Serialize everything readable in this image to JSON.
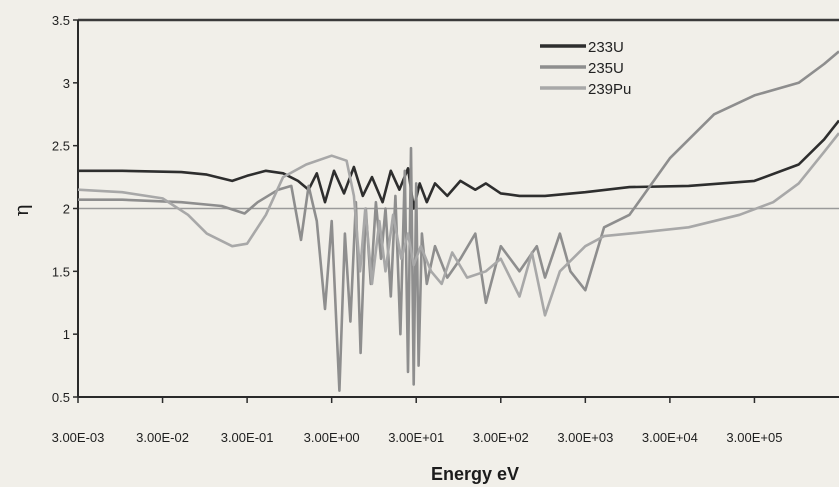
{
  "chart_data": {
    "type": "line",
    "title": "",
    "xlabel": "Energy eV",
    "ylabel": "η",
    "xscale": "log",
    "xlim": [
      0.003,
      3000000
    ],
    "ylim": [
      0.5,
      3.5
    ],
    "xticks": [
      0.003,
      0.03,
      0.3,
      3,
      30,
      300,
      3000,
      30000,
      300000
    ],
    "xtick_labels": [
      "3.00E-03",
      "3.00E-02",
      "3.00E-01",
      "3.00E+00",
      "3.00E+01",
      "3.00E+02",
      "3.00E+03",
      "3.00E+04",
      "3.00E+05"
    ],
    "yticks": [
      0.5,
      1,
      1.5,
      2,
      2.5,
      3,
      3.5
    ],
    "ytick_labels": [
      "0.5",
      "1",
      "1.5",
      "2",
      "2.5",
      "3",
      "3.5"
    ],
    "legend_position": "top-right",
    "reference_line": {
      "y": 2,
      "color": "#9a9a9a"
    },
    "series": [
      {
        "name": "233U",
        "color": "#2e2e2e",
        "points": [
          [
            0.003,
            2.3
          ],
          [
            0.01,
            2.3
          ],
          [
            0.05,
            2.29
          ],
          [
            0.1,
            2.27
          ],
          [
            0.2,
            2.22
          ],
          [
            0.3,
            2.26
          ],
          [
            0.5,
            2.3
          ],
          [
            0.8,
            2.28
          ],
          [
            1.2,
            2.22
          ],
          [
            1.6,
            2.15
          ],
          [
            2.0,
            2.28
          ],
          [
            2.5,
            2.05
          ],
          [
            3.2,
            2.3
          ],
          [
            4.2,
            2.12
          ],
          [
            5.5,
            2.33
          ],
          [
            7.0,
            2.1
          ],
          [
            9.0,
            2.25
          ],
          [
            12,
            2.05
          ],
          [
            15,
            2.3
          ],
          [
            19,
            2.15
          ],
          [
            24,
            2.32
          ],
          [
            28,
            2.0
          ],
          [
            33,
            2.2
          ],
          [
            40,
            2.05
          ],
          [
            50,
            2.2
          ],
          [
            70,
            2.1
          ],
          [
            100,
            2.22
          ],
          [
            150,
            2.15
          ],
          [
            200,
            2.2
          ],
          [
            300,
            2.12
          ],
          [
            500,
            2.1
          ],
          [
            1000,
            2.1
          ],
          [
            3000,
            2.13
          ],
          [
            10000,
            2.17
          ],
          [
            50000,
            2.18
          ],
          [
            300000,
            2.22
          ],
          [
            1000000,
            2.35
          ],
          [
            2000000,
            2.55
          ],
          [
            3000000,
            2.7
          ]
        ]
      },
      {
        "name": "235U",
        "color": "#8e8e8e",
        "points": [
          [
            0.003,
            2.07
          ],
          [
            0.01,
            2.07
          ],
          [
            0.05,
            2.05
          ],
          [
            0.15,
            2.02
          ],
          [
            0.28,
            1.96
          ],
          [
            0.4,
            2.05
          ],
          [
            0.7,
            2.15
          ],
          [
            1.0,
            2.18
          ],
          [
            1.3,
            1.75
          ],
          [
            1.6,
            2.18
          ],
          [
            2.0,
            1.9
          ],
          [
            2.5,
            1.2
          ],
          [
            3.0,
            1.9
          ],
          [
            3.7,
            0.55
          ],
          [
            4.3,
            1.8
          ],
          [
            5.0,
            1.1
          ],
          [
            5.8,
            2.05
          ],
          [
            6.6,
            0.85
          ],
          [
            7.6,
            2.0
          ],
          [
            8.7,
            1.4
          ],
          [
            10,
            2.05
          ],
          [
            11.5,
            1.6
          ],
          [
            13,
            2.0
          ],
          [
            15,
            1.3
          ],
          [
            17,
            2.1
          ],
          [
            19.5,
            1.0
          ],
          [
            22,
            2.3
          ],
          [
            24,
            0.7
          ],
          [
            26,
            2.48
          ],
          [
            28,
            0.6
          ],
          [
            30,
            2.2
          ],
          [
            32,
            0.75
          ],
          [
            35,
            1.8
          ],
          [
            40,
            1.4
          ],
          [
            50,
            1.7
          ],
          [
            70,
            1.45
          ],
          [
            100,
            1.6
          ],
          [
            150,
            1.8
          ],
          [
            200,
            1.25
          ],
          [
            300,
            1.7
          ],
          [
            500,
            1.5
          ],
          [
            800,
            1.7
          ],
          [
            1000,
            1.45
          ],
          [
            1500,
            1.8
          ],
          [
            2000,
            1.5
          ],
          [
            3000,
            1.35
          ],
          [
            5000,
            1.85
          ],
          [
            10000,
            1.95
          ],
          [
            30000,
            2.4
          ],
          [
            100000,
            2.75
          ],
          [
            300000,
            2.9
          ],
          [
            1000000,
            3.0
          ],
          [
            2000000,
            3.15
          ],
          [
            3000000,
            3.25
          ]
        ]
      },
      {
        "name": "239Pu",
        "color": "#a8a8a8",
        "points": [
          [
            0.003,
            2.15
          ],
          [
            0.01,
            2.13
          ],
          [
            0.03,
            2.08
          ],
          [
            0.06,
            1.95
          ],
          [
            0.1,
            1.8
          ],
          [
            0.2,
            1.7
          ],
          [
            0.3,
            1.72
          ],
          [
            0.5,
            1.95
          ],
          [
            0.8,
            2.25
          ],
          [
            1.5,
            2.35
          ],
          [
            3.0,
            2.42
          ],
          [
            4.5,
            2.38
          ],
          [
            5.5,
            2.1
          ],
          [
            6.5,
            1.5
          ],
          [
            7.5,
            2.0
          ],
          [
            9,
            1.4
          ],
          [
            11,
            1.9
          ],
          [
            13,
            1.5
          ],
          [
            16,
            1.95
          ],
          [
            20,
            1.6
          ],
          [
            24,
            1.8
          ],
          [
            28,
            1.55
          ],
          [
            34,
            1.7
          ],
          [
            45,
            1.5
          ],
          [
            60,
            1.4
          ],
          [
            80,
            1.65
          ],
          [
            120,
            1.45
          ],
          [
            200,
            1.5
          ],
          [
            300,
            1.6
          ],
          [
            500,
            1.3
          ],
          [
            700,
            1.65
          ],
          [
            1000,
            1.15
          ],
          [
            1500,
            1.5
          ],
          [
            3000,
            1.7
          ],
          [
            5000,
            1.78
          ],
          [
            10000,
            1.8
          ],
          [
            50000,
            1.85
          ],
          [
            200000,
            1.95
          ],
          [
            500000,
            2.05
          ],
          [
            1000000,
            2.2
          ],
          [
            2000000,
            2.45
          ],
          [
            3000000,
            2.6
          ]
        ]
      }
    ]
  }
}
